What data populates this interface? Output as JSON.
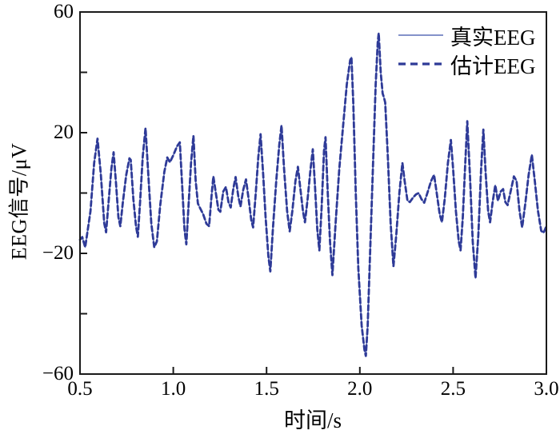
{
  "figure": {
    "background": "#ffffff",
    "frame_color": "#1a1a1a",
    "tick_color": "#1a1a1a"
  },
  "chart_data": {
    "type": "line",
    "title": "",
    "xlabel": "时间/s",
    "ylabel": "EEG信号/μV",
    "xlim": [
      0.5,
      3.0
    ],
    "ylim": [
      -60,
      60
    ],
    "grid": false,
    "legend_position": "top-right",
    "xticks": {
      "values": [
        0.5,
        1.0,
        1.5,
        2.0,
        2.5,
        3.0
      ],
      "labels": [
        "0.5",
        "1.0",
        "1.5",
        "2.0",
        "2.5",
        "3.0"
      ]
    },
    "yticks": {
      "tick_values": [
        40,
        20,
        0,
        -20,
        -40
      ],
      "label_values": [
        60,
        20,
        -20,
        -60
      ],
      "labels": [
        "60",
        "20",
        "−20",
        "−60"
      ]
    },
    "x": [
      0.5,
      0.512,
      0.528,
      0.556,
      0.576,
      0.594,
      0.612,
      0.63,
      0.64,
      0.652,
      0.668,
      0.68,
      0.692,
      0.706,
      0.716,
      0.73,
      0.748,
      0.765,
      0.772,
      0.786,
      0.8,
      0.81,
      0.822,
      0.836,
      0.851,
      0.866,
      0.882,
      0.898,
      0.912,
      0.93,
      0.952,
      0.968,
      0.982,
      1.0,
      1.02,
      1.035,
      1.048,
      1.06,
      1.07,
      1.082,
      1.095,
      1.108,
      1.12,
      1.132,
      1.142,
      1.16,
      1.178,
      1.192,
      1.205,
      1.215,
      1.228,
      1.242,
      1.252,
      1.268,
      1.282,
      1.296,
      1.308,
      1.322,
      1.334,
      1.348,
      1.36,
      1.375,
      1.39,
      1.404,
      1.418,
      1.428,
      1.442,
      1.456,
      1.468,
      1.482,
      1.495,
      1.51,
      1.52,
      1.534,
      1.552,
      1.568,
      1.58,
      1.594,
      1.61,
      1.624,
      1.638,
      1.655,
      1.668,
      1.68,
      1.695,
      1.706,
      1.72,
      1.736,
      1.748,
      1.76,
      1.772,
      1.783,
      1.795,
      1.808,
      1.816,
      1.828,
      1.84,
      1.853,
      1.87,
      1.89,
      1.91,
      1.93,
      1.948,
      1.955,
      1.965,
      1.978,
      1.992,
      2.01,
      2.025,
      2.032,
      2.042,
      2.055,
      2.07,
      2.085,
      2.096,
      2.101,
      2.112,
      2.122,
      2.13,
      2.136,
      2.15,
      2.165,
      2.18,
      2.195,
      2.212,
      2.228,
      2.24,
      2.255,
      2.268,
      2.285,
      2.3,
      2.315,
      2.33,
      2.345,
      2.362,
      2.382,
      2.398,
      2.412,
      2.428,
      2.44,
      2.455,
      2.472,
      2.488,
      2.5,
      2.515,
      2.53,
      2.54,
      2.552,
      2.565,
      2.576,
      2.59,
      2.605,
      2.62,
      2.635,
      2.65,
      2.662,
      2.675,
      2.688,
      2.698,
      2.712,
      2.726,
      2.74,
      2.755,
      2.768,
      2.78,
      2.792,
      2.81,
      2.826,
      2.84,
      2.856,
      2.87,
      2.886,
      2.905,
      2.922,
      2.938,
      2.955,
      2.972,
      2.985,
      3.0
    ],
    "series": [
      {
        "name": "真实EEG",
        "line": "solid",
        "color": "#7282c3",
        "width": 1.6,
        "values": [
          -15.5,
          -14.6,
          -18.0,
          -6,
          10,
          18,
          6,
          -10,
          -13,
          -4,
          8,
          13.5,
          4,
          -8,
          -11,
          -3,
          6,
          11.5,
          11.0,
          -2,
          -11,
          -14.5,
          -3,
          12,
          21.5,
          6,
          -10,
          -18,
          -16,
          -4,
          7,
          11.8,
          10.2,
          12.5,
          15.5,
          16.8,
          2,
          -12,
          -17,
          -4,
          10,
          19,
          4,
          -3.5,
          -4.8,
          -7,
          -10.2,
          -11,
          -1,
          5.5,
          0,
          -5.5,
          -6.2,
          0.5,
          2,
          -3,
          -4.8,
          1.5,
          5.3,
          -1,
          -4.5,
          1,
          4.5,
          -2,
          -9,
          -11.4,
          0,
          12,
          19.5,
          6,
          -8,
          -21,
          -26,
          -12,
          4,
          16,
          22.4,
          8,
          -6,
          -12.7,
          -6,
          4,
          8.7,
          2,
          -6,
          -9.7,
          -2,
          8,
          14.5,
          2,
          -12,
          -19,
          -5,
          14,
          18.5,
          0,
          -16,
          -27.2,
          -10,
          8,
          22,
          36,
          44,
          45,
          30,
          0,
          -25,
          -44,
          -52,
          -54,
          -44,
          -20,
          8,
          36,
          50,
          53,
          40,
          33,
          31.5,
          30,
          12,
          -10,
          -24.3,
          -14,
          0,
          10,
          4,
          -2.5,
          -3,
          -1.5,
          -0.5,
          0,
          -2,
          -3.2,
          0,
          4,
          6,
          0,
          -7,
          -9.7,
          -2,
          10,
          17.6,
          8,
          -6,
          -16,
          -19,
          -8,
          10,
          23.8,
          6,
          -16,
          -28.2,
          -14,
          8,
          21,
          6,
          -6,
          -9.7,
          -3,
          2.6,
          -2.6,
          0.5,
          1.3,
          -3,
          -4,
          1,
          5.5,
          4,
          -6,
          -11.4,
          -4,
          6,
          12.7,
          4,
          -6,
          -12.5,
          -13.2,
          -11
        ]
      },
      {
        "name": "估计EEG",
        "line": "dashed",
        "color": "#2e3a97",
        "width": 2.8,
        "values": [
          -15.5,
          -14.6,
          -18.0,
          -6,
          10,
          18,
          6,
          -10,
          -13,
          -4,
          8,
          13.5,
          4,
          -8,
          -11,
          -3,
          6,
          11.5,
          11.0,
          -2,
          -11,
          -14.5,
          -3,
          12,
          21.5,
          6,
          -10,
          -18,
          -16,
          -4,
          7,
          11.8,
          10.2,
          12.5,
          15.5,
          16.8,
          2,
          -12,
          -17,
          -4,
          10,
          19,
          4,
          -3.5,
          -4.8,
          -7,
          -10.2,
          -11,
          -1,
          5.5,
          0,
          -5.5,
          -6.2,
          0.5,
          2,
          -3,
          -4.8,
          1.5,
          5.3,
          -1,
          -4.5,
          1,
          4.5,
          -2,
          -9,
          -11.4,
          0,
          12,
          19.5,
          6,
          -8,
          -21,
          -26,
          -12,
          4,
          16,
          22.4,
          8,
          -6,
          -12.7,
          -6,
          4,
          8.7,
          2,
          -6,
          -9.7,
          -2,
          8,
          14.5,
          2,
          -12,
          -19,
          -5,
          14,
          18.5,
          0,
          -16,
          -27.2,
          -10,
          8,
          22,
          36,
          44,
          45,
          30,
          0,
          -25,
          -44,
          -52,
          -54,
          -44,
          -20,
          8,
          36,
          50,
          53,
          40,
          33,
          31.5,
          30,
          12,
          -10,
          -24.3,
          -14,
          0,
          10,
          4,
          -2.5,
          -3,
          -1.5,
          -0.5,
          0,
          -2,
          -3.2,
          0,
          4,
          6,
          0,
          -7,
          -9.7,
          -2,
          10,
          17.6,
          8,
          -6,
          -16,
          -19,
          -8,
          10,
          23.8,
          6,
          -16,
          -28.2,
          -14,
          8,
          21,
          6,
          -6,
          -9.7,
          -3,
          2.6,
          -2.6,
          0.5,
          1.3,
          -3,
          -4,
          1,
          5.5,
          4,
          -6,
          -11.4,
          -4,
          6,
          12.7,
          4,
          -6,
          -12.5,
          -13.2,
          -11
        ]
      }
    ]
  }
}
